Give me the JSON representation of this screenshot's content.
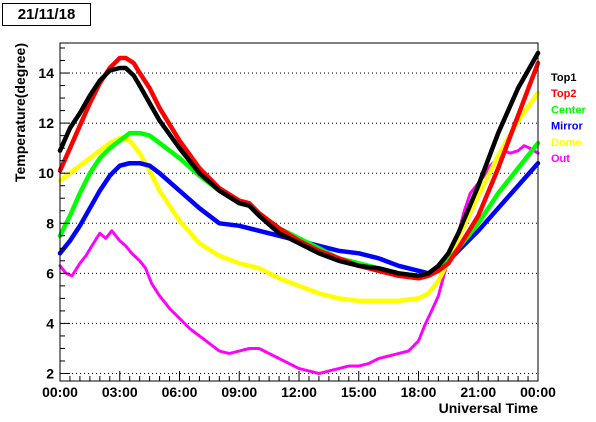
{
  "title": "21/11/18",
  "chart_data": {
    "type": "line",
    "xlabel": "Universal Time",
    "ylabel": "Temperature(degree)",
    "xlim": [
      0,
      24
    ],
    "ylim": [
      1.7,
      15.2
    ],
    "grid": "y-dotted",
    "legend_position": "right",
    "x_ticks": [
      0,
      3,
      6,
      9,
      12,
      15,
      18,
      21,
      24
    ],
    "x_tick_labels": [
      "00:00",
      "03:00",
      "06:00",
      "09:00",
      "12:00",
      "15:00",
      "18:00",
      "21:00",
      "00:00"
    ],
    "y_ticks": [
      2,
      4,
      6,
      8,
      10,
      12,
      14
    ],
    "y_tick_labels": [
      "2",
      "4",
      "6",
      "8",
      "10",
      "12",
      "14"
    ],
    "series": [
      {
        "name": "Top1",
        "color": "#000000",
        "x": [
          0,
          0.5,
          1,
          1.5,
          2,
          2.5,
          3,
          3.3,
          3.7,
          4,
          4.5,
          5,
          6,
          7,
          8,
          9,
          9.5,
          10,
          11,
          12,
          13,
          14,
          15,
          16,
          17,
          18,
          18.5,
          19,
          19.5,
          20,
          21,
          22,
          23,
          24
        ],
        "y": [
          10.9,
          11.8,
          12.4,
          13.1,
          13.7,
          14.1,
          14.2,
          14.2,
          13.9,
          13.5,
          12.8,
          12.1,
          11.0,
          10.0,
          9.3,
          8.8,
          8.7,
          8.3,
          7.6,
          7.2,
          6.8,
          6.5,
          6.3,
          6.2,
          6.0,
          5.9,
          6.0,
          6.3,
          6.8,
          7.6,
          9.5,
          11.6,
          13.4,
          14.8
        ]
      },
      {
        "name": "Top2",
        "color": "#ff0000",
        "x": [
          0,
          0.5,
          1,
          1.5,
          2,
          2.5,
          3,
          3.3,
          3.7,
          4,
          4.5,
          5,
          6,
          7,
          8,
          9,
          9.5,
          10,
          11,
          12,
          13,
          14,
          15,
          16,
          17,
          18,
          18.5,
          19,
          19.5,
          20,
          21,
          22,
          23,
          24
        ],
        "y": [
          10.1,
          11.0,
          11.9,
          12.8,
          13.6,
          14.2,
          14.6,
          14.6,
          14.4,
          14.0,
          13.4,
          12.6,
          11.3,
          10.2,
          9.4,
          8.9,
          8.8,
          8.4,
          7.8,
          7.3,
          6.9,
          6.6,
          6.3,
          6.1,
          5.9,
          5.8,
          5.9,
          6.1,
          6.4,
          7.0,
          8.3,
          10.2,
          12.3,
          14.4
        ]
      },
      {
        "name": "Center",
        "color": "#00ff00",
        "x": [
          0,
          0.5,
          1,
          1.5,
          2,
          2.5,
          3,
          3.5,
          4,
          4.5,
          5,
          6,
          7,
          8,
          9,
          9.5,
          10,
          11,
          12,
          13,
          14,
          15,
          16,
          17,
          18,
          18.5,
          19,
          19.5,
          20,
          21,
          22,
          23,
          24
        ],
        "y": [
          7.5,
          8.3,
          9.2,
          10.0,
          10.6,
          11.0,
          11.3,
          11.6,
          11.6,
          11.5,
          11.2,
          10.6,
          9.9,
          9.3,
          8.8,
          8.7,
          8.4,
          7.8,
          7.4,
          7.0,
          6.6,
          6.4,
          6.2,
          6.0,
          5.9,
          6.0,
          6.2,
          6.5,
          7.0,
          8.0,
          9.2,
          10.2,
          11.2
        ]
      },
      {
        "name": "Mirror",
        "color": "#0000ff",
        "x": [
          0,
          0.5,
          1,
          1.5,
          2,
          2.5,
          3,
          3.5,
          4,
          4.5,
          5,
          6,
          7,
          8,
          9,
          10,
          11,
          12,
          13,
          14,
          15,
          16,
          17,
          18,
          18.5,
          19,
          19.5,
          20,
          21,
          22,
          23,
          24
        ],
        "y": [
          6.8,
          7.3,
          7.9,
          8.6,
          9.3,
          9.9,
          10.3,
          10.4,
          10.4,
          10.3,
          10.0,
          9.3,
          8.6,
          8.0,
          7.9,
          7.7,
          7.5,
          7.3,
          7.1,
          6.9,
          6.8,
          6.6,
          6.3,
          6.1,
          6.0,
          6.2,
          6.5,
          6.9,
          7.7,
          8.6,
          9.5,
          10.4
        ]
      },
      {
        "name": "Dome",
        "color": "#ffff00",
        "x": [
          0,
          0.5,
          1,
          1.5,
          2,
          2.5,
          3,
          3.5,
          4,
          4.5,
          5,
          6,
          7,
          8,
          9,
          10,
          11,
          12,
          13,
          14,
          15,
          16,
          17,
          18,
          18.5,
          19,
          19.5,
          20,
          21,
          22,
          23,
          24
        ],
        "y": [
          9.7,
          10.0,
          10.3,
          10.6,
          10.9,
          11.2,
          11.4,
          11.3,
          10.8,
          10.1,
          9.3,
          8.1,
          7.2,
          6.7,
          6.4,
          6.2,
          5.8,
          5.5,
          5.2,
          5.0,
          4.9,
          4.9,
          4.9,
          5.0,
          5.2,
          5.7,
          6.5,
          7.4,
          9.1,
          10.7,
          12.1,
          13.2
        ]
      },
      {
        "name": "Out",
        "color": "#ff00ff",
        "x": [
          0,
          0.3,
          0.6,
          1,
          1.3,
          1.6,
          2,
          2.3,
          2.6,
          3,
          3.3,
          3.6,
          4,
          4.3,
          4.6,
          5,
          5.5,
          6,
          6.5,
          7,
          7.5,
          8,
          8.5,
          9,
          9.5,
          10,
          10.5,
          11,
          11.5,
          12,
          12.5,
          13,
          13.5,
          14,
          14.5,
          15,
          15.5,
          16,
          16.5,
          17,
          17.5,
          18,
          18.3,
          18.6,
          19,
          19.3,
          19.6,
          20,
          20.3,
          20.6,
          21,
          21.3,
          21.6,
          22,
          22.3,
          22.6,
          23,
          23.3,
          23.6,
          24
        ],
        "y": [
          6.3,
          6.0,
          5.9,
          6.4,
          6.7,
          7.1,
          7.6,
          7.4,
          7.7,
          7.3,
          7.1,
          6.8,
          6.5,
          6.2,
          5.6,
          5.1,
          4.6,
          4.2,
          3.8,
          3.5,
          3.2,
          2.9,
          2.8,
          2.9,
          3.0,
          3.0,
          2.8,
          2.6,
          2.4,
          2.2,
          2.1,
          2.0,
          2.1,
          2.2,
          2.3,
          2.3,
          2.4,
          2.6,
          2.7,
          2.8,
          2.9,
          3.3,
          3.9,
          4.4,
          5.1,
          6.0,
          6.8,
          7.6,
          8.5,
          9.2,
          9.6,
          9.9,
          10.3,
          10.6,
          10.9,
          10.8,
          10.9,
          11.1,
          11.0,
          10.8
        ]
      }
    ]
  }
}
